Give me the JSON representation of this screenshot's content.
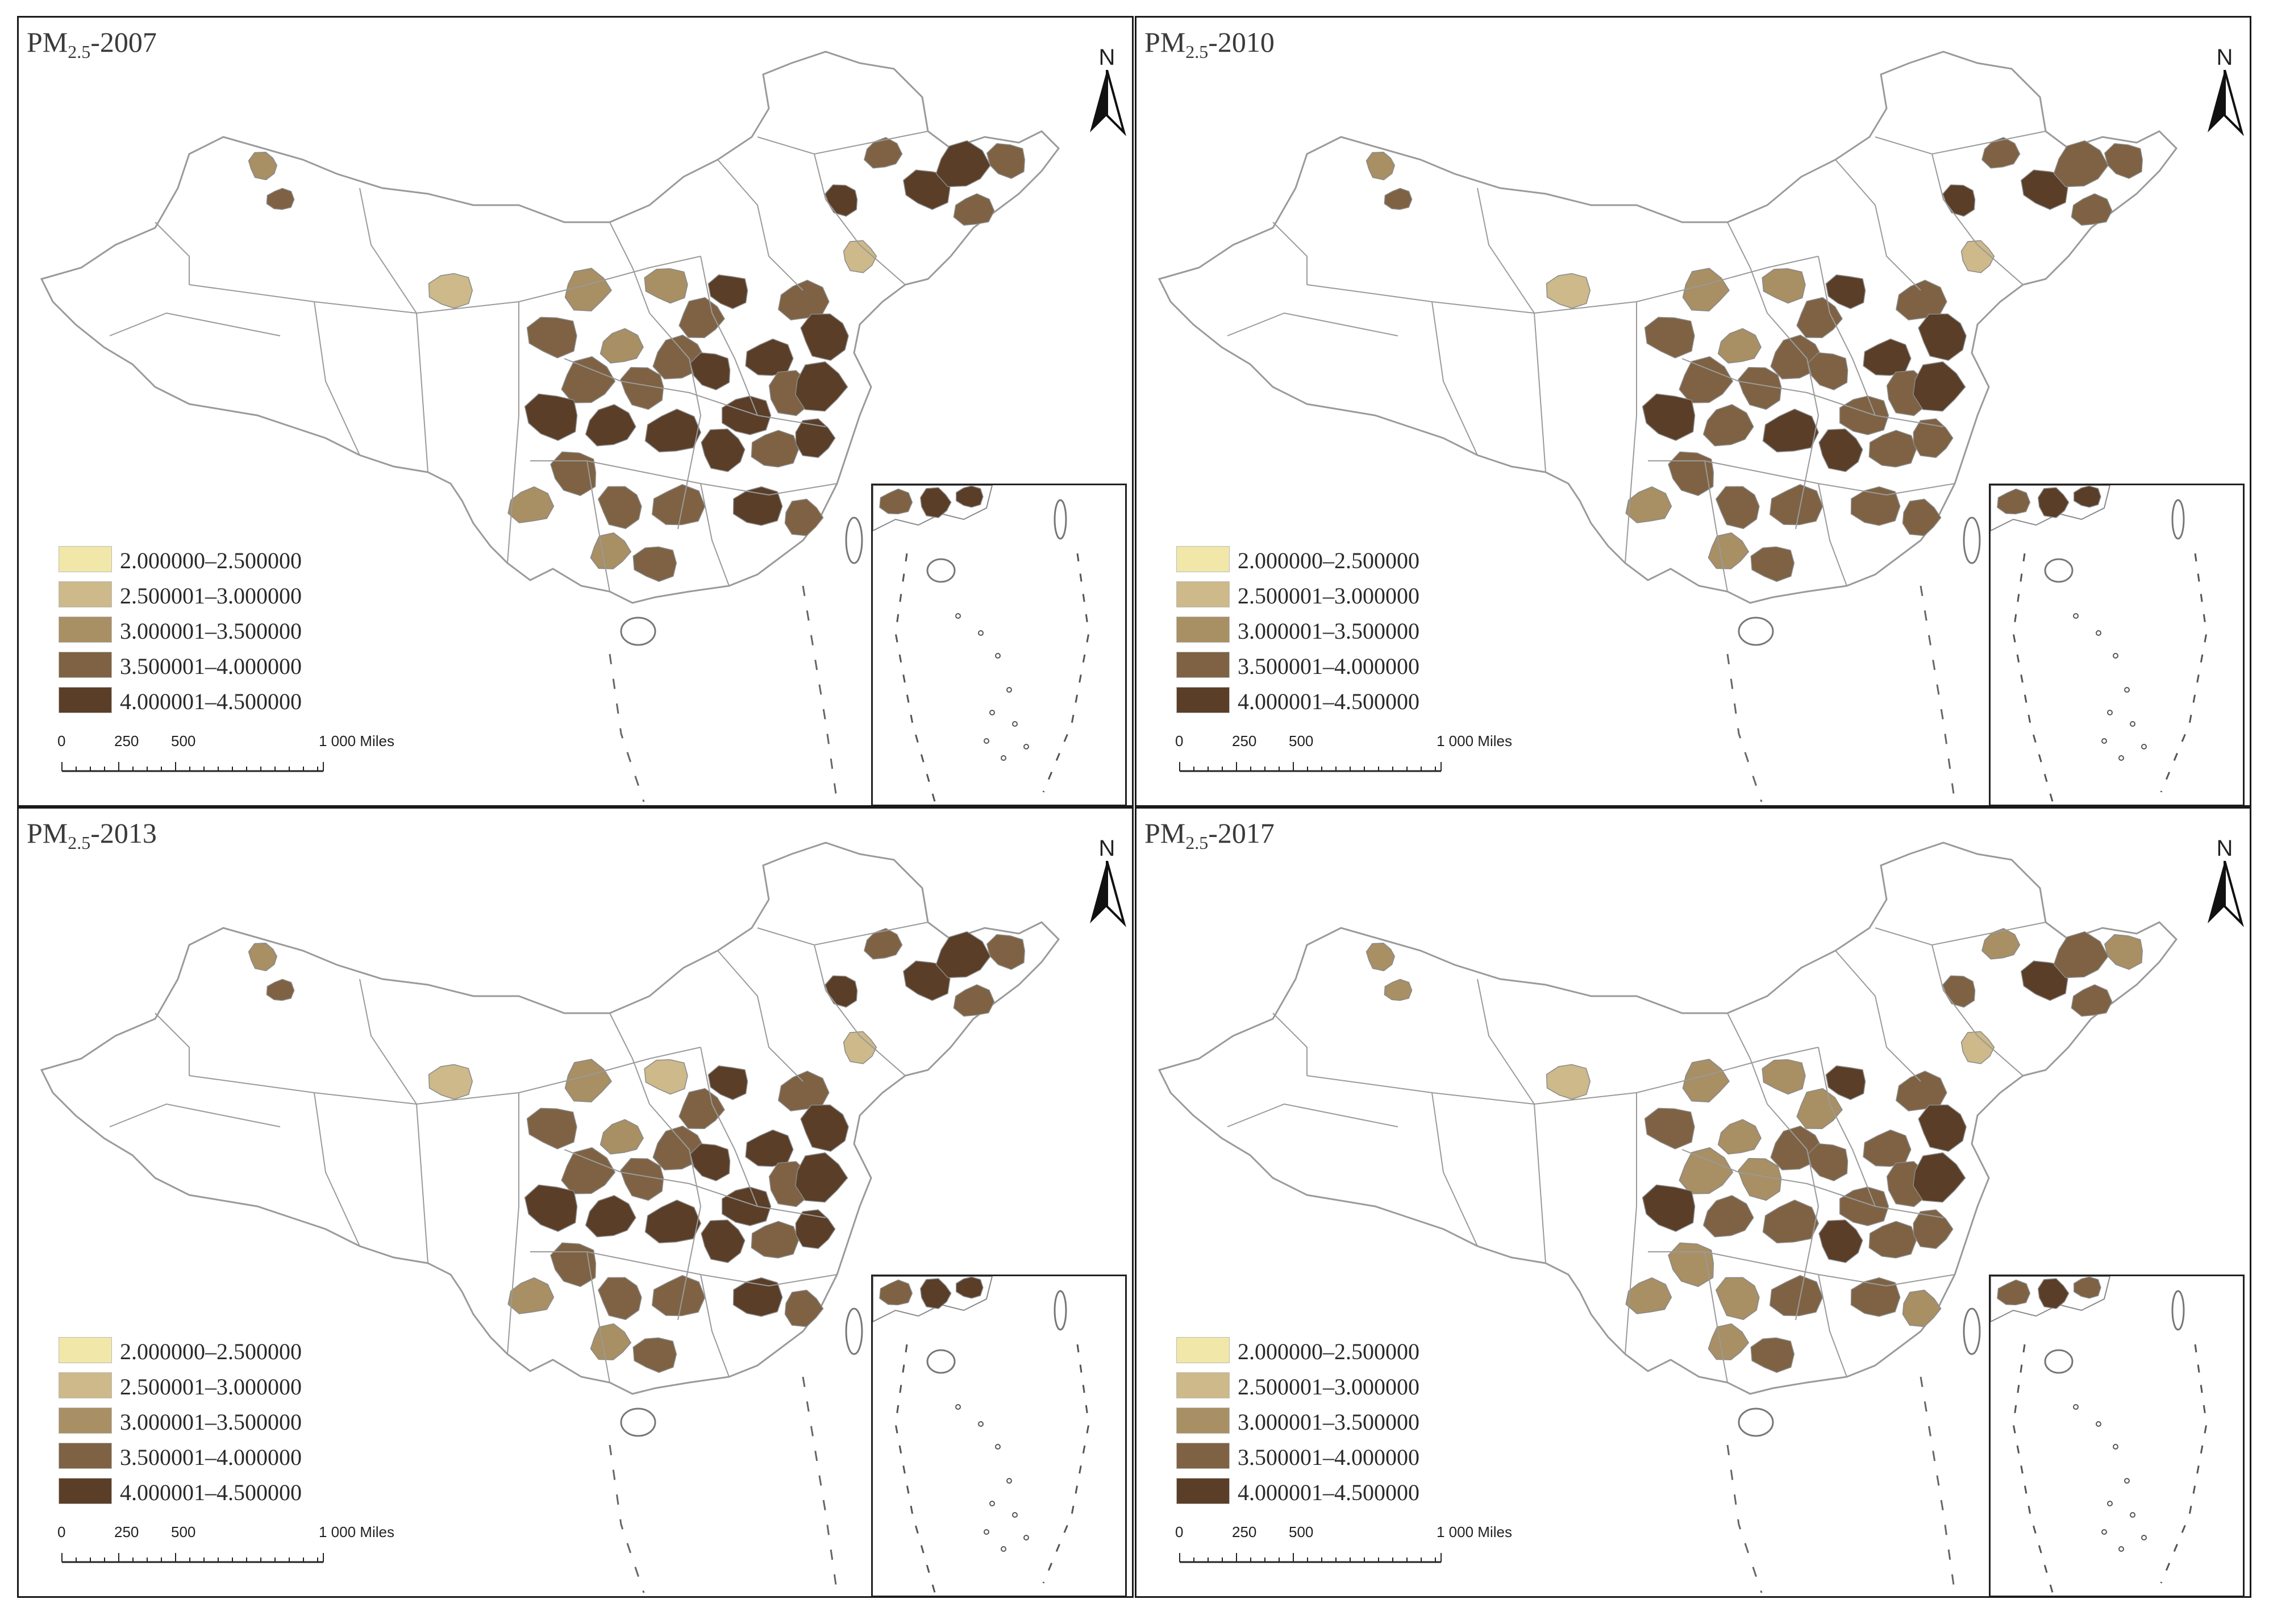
{
  "figure": {
    "panels": [
      {
        "id": "p2007",
        "title_main": "PM",
        "title_sub": "2.5",
        "title_tail": "-2007",
        "region_classes": [
          3,
          4,
          4,
          3,
          4,
          4,
          2,
          3,
          4,
          3,
          4,
          2,
          3,
          4,
          4,
          3,
          4,
          1,
          2,
          3,
          3,
          4,
          4,
          3,
          2,
          3,
          3,
          1,
          4,
          3,
          3,
          2,
          4,
          4,
          3,
          3,
          4,
          3,
          2,
          3
        ]
      },
      {
        "id": "p2010",
        "title_main": "PM",
        "title_sub": "2.5",
        "title_tail": "-2010",
        "region_classes": [
          3,
          4,
          4,
          3,
          3,
          4,
          2,
          3,
          4,
          3,
          3,
          2,
          3,
          4,
          4,
          3,
          3,
          1,
          2,
          3,
          3,
          4,
          3,
          3,
          2,
          3,
          3,
          1,
          3,
          3,
          3,
          2,
          4,
          3,
          3,
          3,
          4,
          3,
          2,
          3
        ]
      },
      {
        "id": "p2013",
        "title_main": "PM",
        "title_sub": "2.5",
        "title_tail": "-2013",
        "region_classes": [
          3,
          4,
          4,
          3,
          4,
          4,
          1,
          3,
          4,
          3,
          4,
          2,
          3,
          4,
          4,
          3,
          4,
          1,
          2,
          3,
          3,
          4,
          4,
          3,
          2,
          3,
          3,
          1,
          4,
          3,
          3,
          2,
          4,
          4,
          3,
          3,
          4,
          3,
          2,
          3
        ]
      },
      {
        "id": "p2017",
        "title_main": "PM",
        "title_sub": "2.5",
        "title_tail": "-2017",
        "region_classes": [
          3,
          4,
          3,
          3,
          3,
          4,
          2,
          2,
          4,
          3,
          3,
          2,
          2,
          3,
          4,
          3,
          3,
          1,
          2,
          3,
          2,
          4,
          3,
          2,
          2,
          2,
          3,
          1,
          3,
          2,
          3,
          2,
          4,
          3,
          2,
          2,
          3,
          3,
          2,
          2
        ]
      }
    ],
    "north_label": "N",
    "legend": [
      {
        "label": "2.000000–2.500000",
        "color": "#f1e7a8"
      },
      {
        "label": "2.500001–3.000000",
        "color": "#cdb989"
      },
      {
        "label": "3.000001–3.500000",
        "color": "#a88f64"
      },
      {
        "label": "3.500001–4.000000",
        "color": "#7e6243"
      },
      {
        "label": "4.000001–4.500000",
        "color": "#5a3e28"
      }
    ],
    "scale_bar": {
      "ticks": [
        "0",
        "250",
        "500",
        "1 000 Miles"
      ]
    },
    "colors": {
      "outline": "#9a9a9a",
      "frame": "#1a1a1a",
      "no_data": "#ffffff"
    }
  }
}
